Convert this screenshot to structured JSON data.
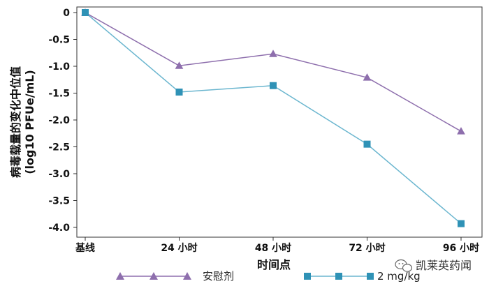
{
  "chart_data": {
    "type": "line",
    "categories": [
      "基线",
      "24 小时",
      "48 小时",
      "72 小时",
      "96 小时"
    ],
    "series": [
      {
        "name": "安慰剂",
        "values": [
          0,
          -0.99,
          -0.77,
          -1.21,
          -2.21
        ],
        "color": "#8e6fad",
        "marker": "triangle"
      },
      {
        "name": "2 mg/kg",
        "values": [
          0,
          -1.48,
          -1.36,
          -2.45,
          -3.93
        ],
        "color": "#6bb6cf",
        "marker_color": "#2f92b6",
        "marker": "square"
      }
    ],
    "xlabel": "时间点",
    "ylabel": "病毒载量的变化中位值\n(log10 PFUe/mL)",
    "ylim": [
      -4.0,
      0
    ],
    "yticks": [
      "0",
      "-0.5",
      "-1.0",
      "-1.5",
      "-2.0",
      "-2.5",
      "-3.0",
      "-3.5",
      "-4.0"
    ],
    "ytick_values": [
      0,
      -0.5,
      -1.0,
      -1.5,
      -2.0,
      -2.5,
      -3.0,
      -3.5,
      -4.0
    ],
    "grid": false,
    "legend_position": "bottom"
  },
  "watermark": {
    "text": "凯莱英药闻",
    "icon": "wechat-icon"
  }
}
